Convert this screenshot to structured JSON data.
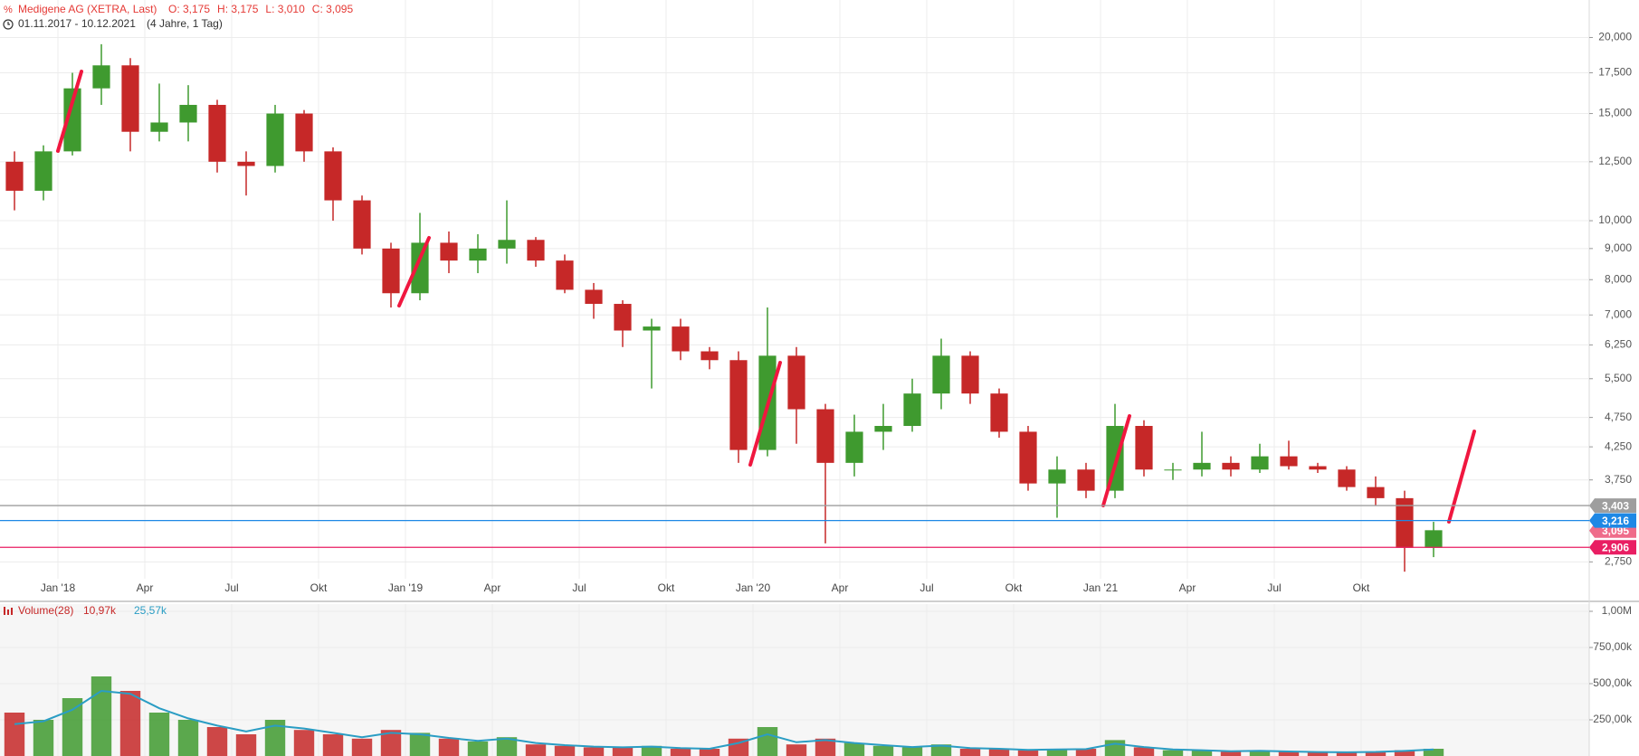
{
  "chart_data": [
    {
      "type": "candlestick",
      "title": "Medigene AG (XETRA, Last)",
      "ohlc_labels": [
        "O: 3,175",
        "H: 3,175",
        "L: 3,010",
        "C: 3,095"
      ],
      "subtitle": "01.11.2017 - 10.12.2021",
      "period": "(4 Jahre, 1 Tag)",
      "x": [
        "2017-11",
        "2017-12",
        "2018-01",
        "2018-02",
        "2018-03",
        "2018-04",
        "2018-05",
        "2018-06",
        "2018-07",
        "2018-08",
        "2018-09",
        "2018-10",
        "2018-11",
        "2018-12",
        "2019-01",
        "2019-02",
        "2019-03",
        "2019-04",
        "2019-05",
        "2019-06",
        "2019-07",
        "2019-08",
        "2019-09",
        "2019-10",
        "2019-11",
        "2019-12",
        "2020-01",
        "2020-02",
        "2020-03",
        "2020-04",
        "2020-05",
        "2020-06",
        "2020-07",
        "2020-08",
        "2020-09",
        "2020-10",
        "2020-11",
        "2020-12",
        "2021-01",
        "2021-02",
        "2021-03",
        "2021-04",
        "2021-05",
        "2021-06",
        "2021-07",
        "2021-08",
        "2021-09",
        "2021-10",
        "2021-11",
        "2021-12"
      ],
      "open": [
        12.5,
        11.2,
        13.0,
        16.5,
        18.0,
        14.0,
        14.5,
        15.5,
        12.5,
        12.3,
        15.0,
        13.0,
        10.8,
        9.0,
        7.6,
        9.2,
        8.6,
        9.0,
        9.3,
        8.6,
        7.7,
        7.3,
        6.6,
        6.7,
        6.1,
        5.9,
        4.2,
        6.0,
        4.9,
        4.0,
        4.5,
        4.6,
        5.2,
        6.0,
        5.2,
        4.5,
        3.7,
        3.9,
        3.6,
        4.6,
        3.9,
        3.9,
        4.0,
        3.9,
        4.1,
        3.95,
        3.9,
        3.65,
        3.5,
        2.9
      ],
      "high": [
        13.0,
        13.3,
        17.5,
        19.5,
        18.5,
        16.8,
        16.7,
        15.8,
        13.0,
        15.5,
        15.2,
        13.2,
        11.0,
        9.2,
        10.3,
        9.6,
        9.5,
        10.8,
        9.4,
        8.8,
        7.9,
        7.4,
        6.9,
        6.9,
        6.2,
        6.1,
        7.2,
        6.2,
        5.0,
        4.8,
        5.0,
        5.5,
        6.4,
        6.1,
        5.3,
        4.6,
        4.1,
        4.0,
        5.0,
        4.7,
        4.0,
        4.5,
        4.1,
        4.3,
        4.35,
        4.0,
        3.95,
        3.8,
        3.6,
        3.2
      ],
      "low": [
        10.4,
        10.8,
        12.8,
        15.5,
        13.0,
        13.5,
        13.5,
        12.0,
        11.0,
        12.0,
        12.5,
        10.0,
        8.8,
        7.2,
        7.4,
        8.2,
        8.2,
        8.5,
        8.4,
        7.6,
        6.9,
        6.2,
        5.3,
        5.9,
        5.7,
        4.0,
        4.1,
        4.3,
        2.95,
        3.8,
        4.2,
        4.5,
        4.9,
        5.0,
        4.4,
        3.6,
        3.25,
        3.5,
        3.5,
        3.8,
        3.75,
        3.8,
        3.8,
        3.85,
        3.9,
        3.85,
        3.6,
        3.4,
        2.65,
        2.8
      ],
      "close": [
        11.2,
        13.0,
        16.5,
        18.0,
        14.0,
        14.5,
        15.5,
        12.5,
        12.3,
        15.0,
        13.0,
        10.8,
        9.0,
        7.6,
        9.2,
        8.6,
        9.0,
        9.3,
        8.6,
        7.7,
        7.3,
        6.6,
        6.7,
        6.1,
        5.9,
        4.2,
        6.0,
        4.9,
        4.0,
        4.5,
        4.6,
        5.2,
        6.0,
        5.2,
        4.5,
        3.7,
        3.9,
        3.6,
        4.6,
        3.9,
        3.9,
        4.0,
        3.9,
        4.1,
        3.95,
        3.9,
        3.65,
        3.5,
        2.9,
        3.1
      ],
      "up_color": "#3f9a2f",
      "down_color": "#c62828",
      "log_scale": true,
      "grid": true,
      "ylim": [
        2.58,
        23.05
      ],
      "yticks": [
        {
          "value": 2.75,
          "label": "2,750"
        },
        {
          "value": 3.75,
          "label": "3,750"
        },
        {
          "value": 4.25,
          "label": "4,250"
        },
        {
          "value": 4.75,
          "label": "4,750"
        },
        {
          "value": 5.5,
          "label": "5,500"
        },
        {
          "value": 6.25,
          "label": "6,250"
        },
        {
          "value": 7,
          "label": "7,000"
        },
        {
          "value": 8,
          "label": "8,000"
        },
        {
          "value": 9,
          "label": "9,000"
        },
        {
          "value": 10,
          "label": "10,000"
        },
        {
          "value": 12.5,
          "label": "12,500"
        },
        {
          "value": 15,
          "label": "15,000"
        },
        {
          "value": 17.5,
          "label": "17,500"
        },
        {
          "value": 20,
          "label": "20,000"
        }
      ],
      "xticks": [
        {
          "value": "2018-01",
          "label": "Jan '18"
        },
        {
          "value": "2018-04",
          "label": "Apr"
        },
        {
          "value": "2018-07",
          "label": "Jul"
        },
        {
          "value": "2018-10",
          "label": "Okt"
        },
        {
          "value": "2019-01",
          "label": "Jan '19"
        },
        {
          "value": "2019-04",
          "label": "Apr"
        },
        {
          "value": "2019-07",
          "label": "Jul"
        },
        {
          "value": "2019-10",
          "label": "Okt"
        },
        {
          "value": "2020-01",
          "label": "Jan '20"
        },
        {
          "value": "2020-04",
          "label": "Apr"
        },
        {
          "value": "2020-07",
          "label": "Jul"
        },
        {
          "value": "2020-10",
          "label": "Okt"
        },
        {
          "value": "2021-01",
          "label": "Jan '21"
        },
        {
          "value": "2021-04",
          "label": "Apr"
        },
        {
          "value": "2021-07",
          "label": "Jul"
        },
        {
          "value": "2021-10",
          "label": "Okt"
        }
      ],
      "price_levels": [
        {
          "value": 3.403,
          "label": "3,403",
          "color": "#9e9e9e",
          "line": true
        },
        {
          "value": 3.095,
          "label": "3,095",
          "color": "#ef6c8a",
          "line": false
        },
        {
          "value": 3.216,
          "label": "3,216",
          "color": "#1e88e5",
          "line": true
        },
        {
          "value": 2.906,
          "label": "2,906",
          "color": "#e91e63",
          "line": true
        }
      ]
    },
    {
      "type": "bar",
      "title": "Volume(28)",
      "legend_values": [
        {
          "label": "10,97k",
          "color": "#c62828"
        },
        {
          "label": "25,57k",
          "color": "#2a9dc4"
        }
      ],
      "series": [
        {
          "values": [
            300000,
            250000,
            400000,
            550000,
            450000,
            300000,
            250000,
            200000,
            150000,
            250000,
            180000,
            150000,
            120000,
            180000,
            160000,
            120000,
            100000,
            130000,
            80000,
            70000,
            60000,
            60000,
            70000,
            50000,
            50000,
            120000,
            200000,
            80000,
            120000,
            90000,
            70000,
            60000,
            80000,
            50000,
            50000,
            40000,
            50000,
            50000,
            110000,
            60000,
            40000,
            40000,
            30000,
            40000,
            30000,
            25000,
            25000,
            30000,
            40000,
            50000
          ]
        },
        {
          "color": "#2a9dc4",
          "values": [
            220000,
            240000,
            320000,
            450000,
            430000,
            330000,
            260000,
            210000,
            170000,
            210000,
            190000,
            160000,
            130000,
            160000,
            150000,
            125000,
            105000,
            120000,
            90000,
            75000,
            65000,
            60000,
            65000,
            55000,
            50000,
            90000,
            150000,
            95000,
            110000,
            90000,
            75000,
            62000,
            72000,
            55000,
            50000,
            42000,
            45000,
            48000,
            85000,
            62000,
            45000,
            40000,
            33000,
            36000,
            31000,
            27000,
            26000,
            28000,
            35000,
            45000
          ]
        }
      ],
      "ylim": [
        0,
        1050000
      ],
      "yticks": [
        {
          "value": 250000,
          "label": "250,00k"
        },
        {
          "value": 500000,
          "label": "500,00k"
        },
        {
          "value": 750000,
          "label": "750,00k"
        },
        {
          "value": 1000000,
          "label": "1,00M"
        }
      ],
      "grid": true
    }
  ]
}
